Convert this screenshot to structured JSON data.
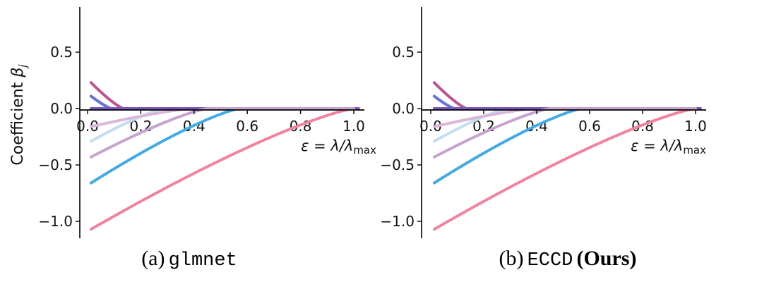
{
  "figure": {
    "background": "#ffffff",
    "ylabel": {
      "text": "Coefficient ",
      "symbol": "β",
      "subscript": "j"
    },
    "xlabel": {
      "main": "ε = λ/λ",
      "subscript": "max"
    }
  },
  "captions": {
    "left": {
      "index": "(a)",
      "code": "glmnet",
      "suffix": ""
    },
    "right": {
      "index": "(b)",
      "code": "ECCD",
      "suffix": "(Ours)"
    }
  },
  "chart_data": [
    {
      "type": "line",
      "title": "(a) glmnet",
      "xlabel": "ε = λ/λ_max",
      "ylabel": "Coefficient β_j",
      "xlim": [
        -0.03,
        1.04
      ],
      "ylim": [
        -1.15,
        0.91
      ],
      "xticks": [
        0.0,
        0.2,
        0.4,
        0.6,
        0.8,
        1.0
      ],
      "yticks": [
        0.5,
        0.0,
        -0.5,
        -1.0
      ],
      "grid": false,
      "legend": false,
      "curve_start": 0.013,
      "shape_exponent": 1.25,
      "line_width": 4,
      "axis_color": "#000000",
      "series": [
        {
          "name": "beta-pink",
          "color": "#f0849f",
          "start_value": -1.07,
          "zero_crossing": 1.0,
          "flat_until": 1.0
        },
        {
          "name": "beta-sky-blue",
          "color": "#44aae1",
          "start_value": -0.66,
          "zero_crossing": 0.57,
          "flat_until": 1.0
        },
        {
          "name": "beta-pale-cyan",
          "color": "#c2dfee",
          "start_value": -0.29,
          "zero_crossing": 0.29,
          "flat_until": 1.0
        },
        {
          "name": "beta-mauve",
          "color": "#dcb5da",
          "start_value": -0.16,
          "zero_crossing": 0.39,
          "flat_until": 1.0
        },
        {
          "name": "beta-raspberry",
          "color": "#b9548f",
          "start_value": 0.23,
          "zero_crossing": 0.135,
          "flat_until": 1.0
        },
        {
          "name": "beta-periwinkle",
          "color": "#6672d4",
          "start_value": 0.11,
          "zero_crossing": 0.09,
          "flat_until": 1.0
        },
        {
          "name": "beta-violet",
          "color": "#7a57bd",
          "start_value": 0.0,
          "zero_crossing": 0.013,
          "flat_until": 1.018
        },
        {
          "name": "beta-lavender",
          "color": "#c7a3d1",
          "start_value": -0.43,
          "zero_crossing": 0.45,
          "flat_until": 1.0
        }
      ]
    },
    {
      "type": "line",
      "title": "(b) ECCD (Ours)",
      "xlabel": "ε = λ/λ_max",
      "ylabel": "Coefficient β_j",
      "xlim": [
        -0.03,
        1.04
      ],
      "ylim": [
        -1.15,
        0.91
      ],
      "xticks": [
        0.0,
        0.2,
        0.4,
        0.6,
        0.8,
        1.0
      ],
      "yticks": [
        0.5,
        0.0,
        -0.5,
        -1.0
      ],
      "grid": false,
      "legend": false,
      "curve_start": 0.013,
      "shape_exponent": 1.25,
      "line_width": 4,
      "axis_color": "#000000",
      "series": [
        {
          "name": "beta-pink",
          "color": "#f0849f",
          "start_value": -1.07,
          "zero_crossing": 1.0,
          "flat_until": 1.018
        },
        {
          "name": "beta-sky-blue",
          "color": "#44aae1",
          "start_value": -0.66,
          "zero_crossing": 0.57,
          "flat_until": 1.0
        },
        {
          "name": "beta-pale-cyan",
          "color": "#c2dfee",
          "start_value": -0.29,
          "zero_crossing": 0.29,
          "flat_until": 1.0
        },
        {
          "name": "beta-mauve",
          "color": "#dcb5da",
          "start_value": -0.16,
          "zero_crossing": 0.39,
          "flat_until": 1.0
        },
        {
          "name": "beta-raspberry",
          "color": "#b9548f",
          "start_value": 0.23,
          "zero_crossing": 0.135,
          "flat_until": 1.0
        },
        {
          "name": "beta-periwinkle",
          "color": "#6672d4",
          "start_value": 0.11,
          "zero_crossing": 0.09,
          "flat_until": 1.0
        },
        {
          "name": "beta-violet",
          "color": "#7a57bd",
          "start_value": 0.0,
          "zero_crossing": 0.013,
          "flat_until": 1.018
        },
        {
          "name": "beta-lavender",
          "color": "#c7a3d1",
          "start_value": -0.43,
          "zero_crossing": 0.45,
          "flat_until": 1.0
        }
      ]
    }
  ]
}
